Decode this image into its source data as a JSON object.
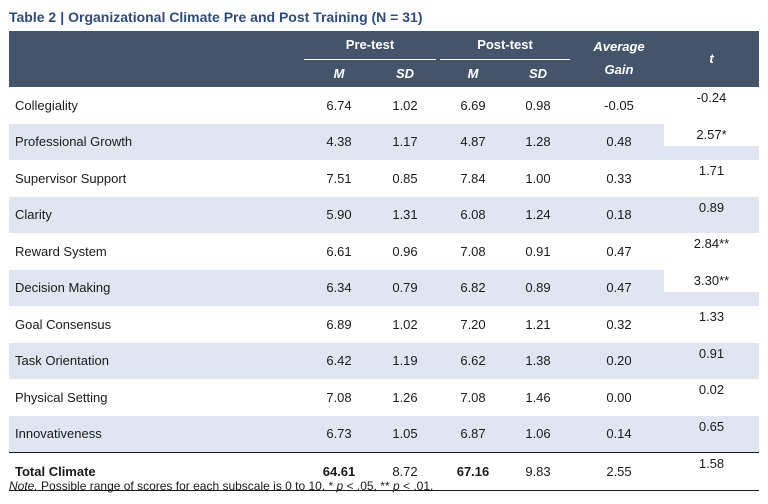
{
  "title": {
    "label": "Table 2",
    "separator": "|",
    "text": "Organizational Climate Pre and Post Training (N = 31)"
  },
  "header": {
    "pre_test": "Pre-test",
    "post_test": "Post-test",
    "average": "Average",
    "gain": "Gain",
    "t": "t",
    "m": "M",
    "sd": "SD"
  },
  "rows": [
    {
      "label": "Collegiality",
      "pre_m": "6.74",
      "pre_sd": "1.02",
      "post_m": "6.69",
      "post_sd": "0.98",
      "gain": "-0.05",
      "t": "-0.24"
    },
    {
      "label": "Professional Growth",
      "pre_m": "4.38",
      "pre_sd": "1.17",
      "post_m": "4.87",
      "post_sd": "1.28",
      "gain": "0.48",
      "t": "2.57*"
    },
    {
      "label": "Supervisor Support",
      "pre_m": "7.51",
      "pre_sd": "0.85",
      "post_m": "7.84",
      "post_sd": "1.00",
      "gain": "0.33",
      "t": "1.71"
    },
    {
      "label": "Clarity",
      "pre_m": "5.90",
      "pre_sd": "1.31",
      "post_m": "6.08",
      "post_sd": "1.24",
      "gain": "0.18",
      "t": "0.89"
    },
    {
      "label": "Reward System",
      "pre_m": "6.61",
      "pre_sd": "0.96",
      "post_m": "7.08",
      "post_sd": "0.91",
      "gain": "0.47",
      "t": "2.84**"
    },
    {
      "label": "Decision Making",
      "pre_m": "6.34",
      "pre_sd": "0.79",
      "post_m": "6.82",
      "post_sd": "0.89",
      "gain": "0.47",
      "t": "3.30**"
    },
    {
      "label": "Goal Consensus",
      "pre_m": "6.89",
      "pre_sd": "1.02",
      "post_m": "7.20",
      "post_sd": "1.21",
      "gain": "0.32",
      "t": "1.33"
    },
    {
      "label": "Task Orientation",
      "pre_m": "6.42",
      "pre_sd": "1.19",
      "post_m": "6.62",
      "post_sd": "1.38",
      "gain": "0.20",
      "t": "0.91"
    },
    {
      "label": "Physical Setting",
      "pre_m": "7.08",
      "pre_sd": "1.26",
      "post_m": "7.08",
      "post_sd": "1.46",
      "gain": "0.00",
      "t": "0.02"
    },
    {
      "label": "Innovativeness",
      "pre_m": "6.73",
      "pre_sd": "1.05",
      "post_m": "6.87",
      "post_sd": "1.06",
      "gain": "0.14",
      "t": "0.65"
    },
    {
      "label": "Total Climate",
      "pre_m": "64.61",
      "pre_sd": "8.72",
      "post_m": "67.16",
      "post_sd": "9.83",
      "gain": "2.55",
      "t": "1.58"
    }
  ],
  "note": {
    "lead": "Note.",
    "range": "Possible range of scores for each subscale is 0 to 10.",
    "star1": "*",
    "p1": "p",
    "c1": "< .05,",
    "star2": "**",
    "p2": "p",
    "c2": "< .01."
  },
  "colors": {
    "header_bg": "#44546a",
    "alt_row": "#dfe6f1",
    "title": "#2f4b7c"
  }
}
